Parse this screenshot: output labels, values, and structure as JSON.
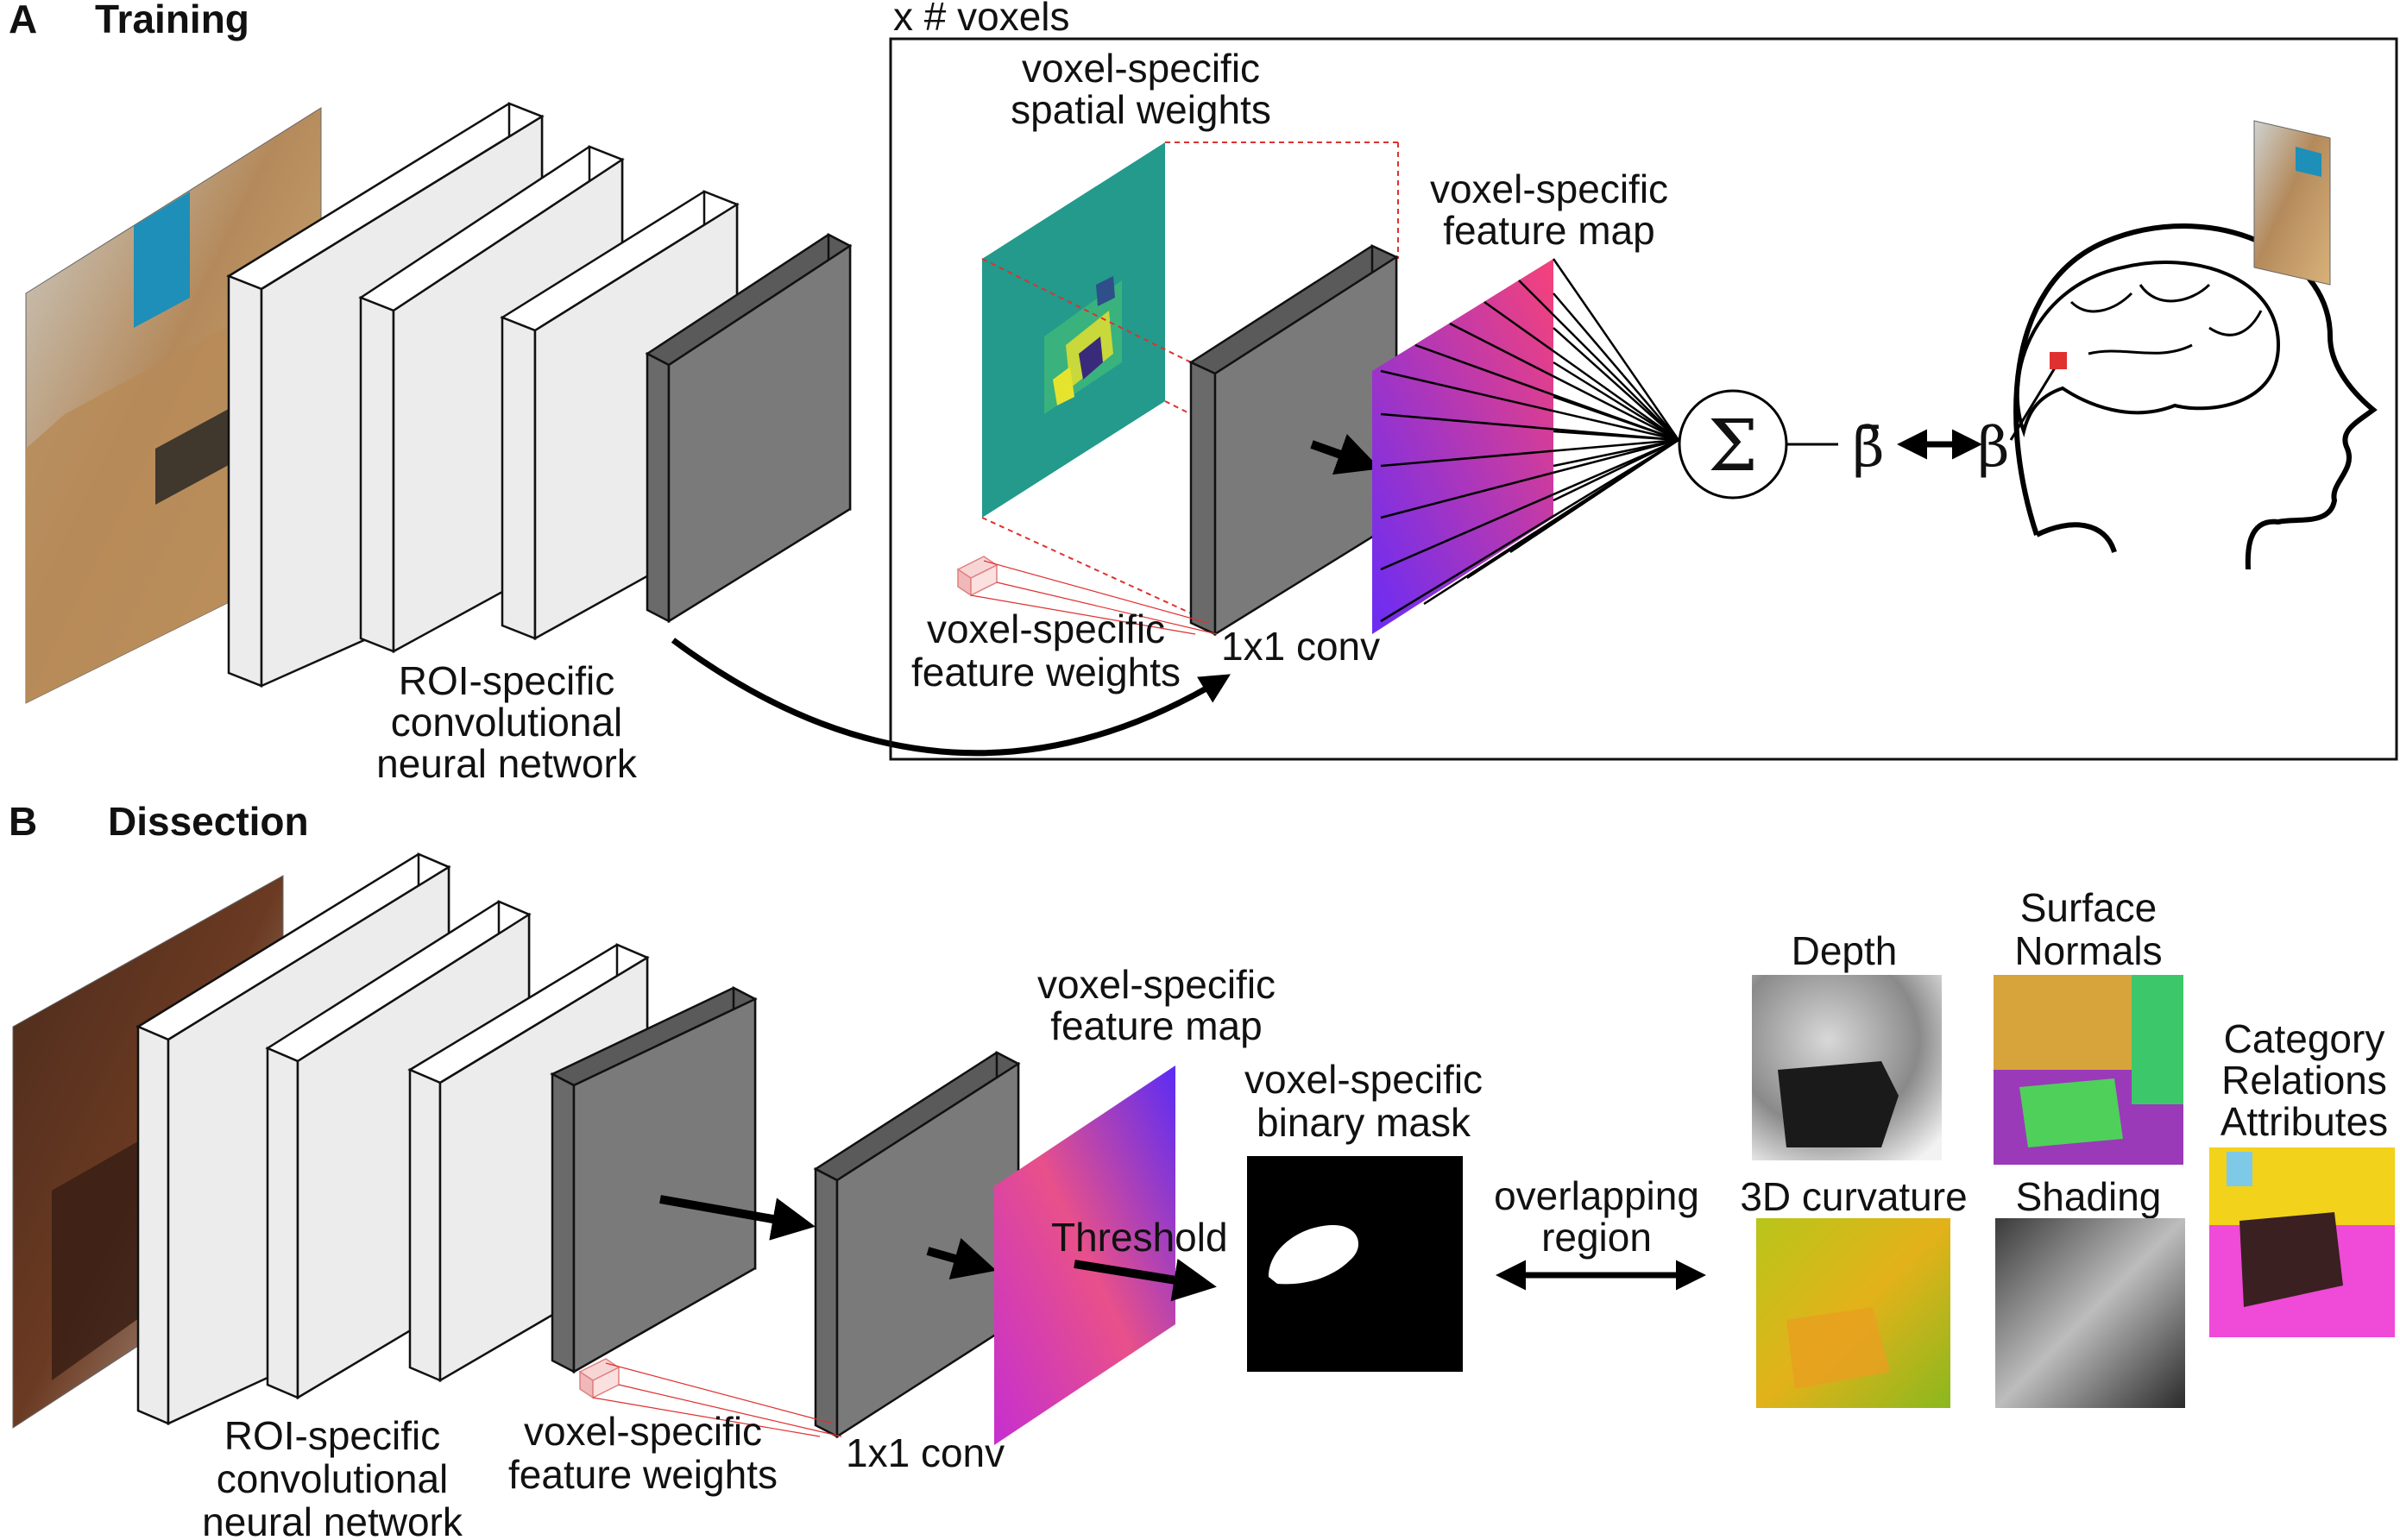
{
  "panel_a": {
    "letter": "A",
    "title": "Training",
    "repeat_label": "x # voxels",
    "spatial_weights_label": [
      "voxel-specific",
      "spatial weights"
    ],
    "feature_map_label": [
      "voxel-specific",
      "feature map"
    ],
    "feature_weights_label": [
      "voxel-specific",
      "feature weights"
    ],
    "conv_label": "1x1 conv",
    "cnn_label": [
      "ROI-specific",
      "convolutional",
      "neural network"
    ],
    "sum_symbol": "Σ",
    "beta_hat": "β̄",
    "beta": "β"
  },
  "panel_b": {
    "letter": "B",
    "title": "Dissection",
    "feature_map_label": [
      "voxel-specific",
      "feature map"
    ],
    "binary_mask_label": [
      "voxel-specific",
      "binary mask"
    ],
    "threshold_label": "Threshold",
    "overlap_label": [
      "overlapping",
      "region"
    ],
    "feature_weights_label": [
      "voxel-specific",
      "feature weights"
    ],
    "conv_label": "1x1 conv",
    "cnn_label": [
      "ROI-specific",
      "convolutional",
      "neural network"
    ],
    "depth_label": "Depth",
    "normals_label": [
      "Surface",
      "Normals"
    ],
    "curvature_label": "3D curvature",
    "shading_label": "Shading",
    "segmentation_label": [
      "Category",
      "Relations",
      "Attributes"
    ]
  },
  "colors": {
    "layer_light": "#ececec",
    "layer_side": "#ffffff",
    "layer_dark": "#7a7a7a",
    "feature_map_start": "#7b2ff7",
    "feature_map_end": "#f0407a",
    "spatial_bg": "#1f9e8a",
    "highlight_red": "#e03030"
  }
}
